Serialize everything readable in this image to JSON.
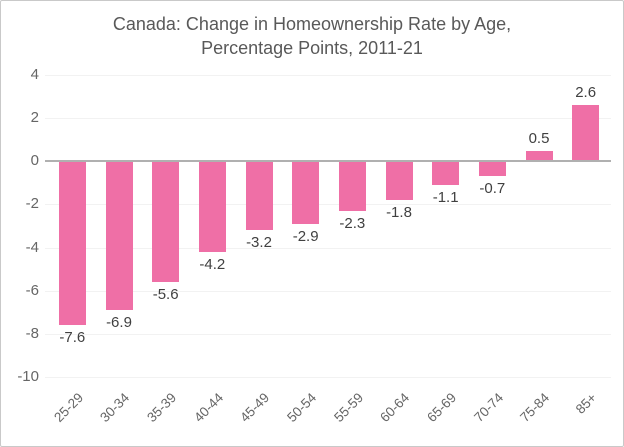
{
  "window": {
    "background": "#ffffff",
    "border_color": "#c9c9c9"
  },
  "chart_data": {
    "type": "bar",
    "title": "Canada: Change in Homeownership Rate by Age, Percentage Points, 2011-21",
    "title_lines": [
      "Canada: Change in Homeownership Rate by Age,",
      "Percentage Points, 2011-21"
    ],
    "categories": [
      "25-29",
      "30-34",
      "35-39",
      "40-44",
      "45-49",
      "50-54",
      "55-59",
      "60-64",
      "65-69",
      "70-74",
      "75-84",
      "85+"
    ],
    "values": [
      -7.6,
      -6.9,
      -5.6,
      -4.2,
      -3.2,
      -2.9,
      -2.3,
      -1.8,
      -1.1,
      -0.7,
      0.5,
      2.6
    ],
    "data_labels": [
      "-7.6",
      "-6.9",
      "-5.6",
      "-4.2",
      "-3.2",
      "-2.9",
      "-2.3",
      "-1.8",
      "-1.1",
      "-0.7",
      "0.5",
      "2.6"
    ],
    "xlabel": "",
    "ylabel": "",
    "ylim": [
      -10,
      4
    ],
    "yticks": [
      4,
      2,
      0,
      -2,
      -4,
      -6,
      -8,
      -10
    ],
    "grid": true,
    "legend_position": "none",
    "bar_color": "#ef6fa6",
    "zero_line_color": "#b0b0b0",
    "gridline_color": "#f2f2f2",
    "title_color": "#595959",
    "tick_label_color": "#666666",
    "data_label_color": "#404040"
  }
}
